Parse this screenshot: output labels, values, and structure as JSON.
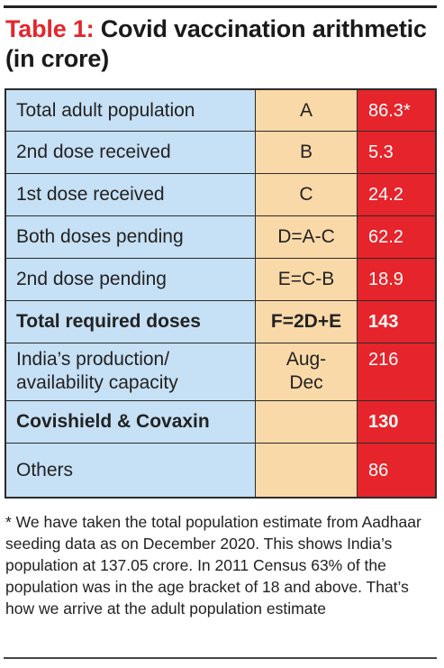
{
  "title": {
    "number": "Table 1:",
    "text": " Covid vaccination arithmetic (in crore)"
  },
  "rows": [
    {
      "label": "Total adult population",
      "formula": "A",
      "value": "86.3*",
      "bold": false
    },
    {
      "label": "2nd dose received",
      "formula": "B",
      "value": "5.3",
      "bold": false
    },
    {
      "label": "1st dose received",
      "formula": "C",
      "value": "24.2",
      "bold": false
    },
    {
      "label": "Both doses pending",
      "formula": "D=A-C",
      "value": "62.2",
      "bold": false
    },
    {
      "label": "2nd dose pending",
      "formula": "E=C-B",
      "value": "18.9",
      "bold": false
    },
    {
      "label": "Total required doses",
      "formula": "F=2D+E",
      "value": "143",
      "bold": true
    },
    {
      "label": "India’s production/\navailability capacity",
      "formula": "Aug-\nDec",
      "value": "216",
      "bold": false
    },
    {
      "label": "Covishield & Covaxin",
      "formula": "",
      "value": "130",
      "bold": true
    },
    {
      "label": "Others",
      "formula": "",
      "value": "86",
      "bold": false
    }
  ],
  "footnote": "* We have taken the total population estimate from Aadhaar seeding data as on December 2020. This shows India’s population at 137.05 crore. In 2011 Census 63% of the population was in the age bracket of 18 and above. That’s how we arrive at the adult population estimate",
  "colors": {
    "title_accent": "#e3262c",
    "label_column": "#c6e0f5",
    "formula_column": "#f9d9a8",
    "value_column": "#e6242b"
  }
}
